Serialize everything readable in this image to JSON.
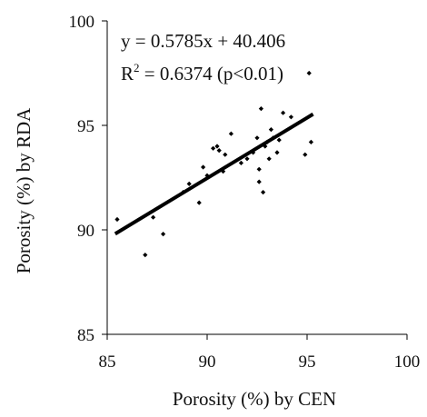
{
  "chart_data": {
    "type": "scatter",
    "xlabel": "Porosity (%) by CEN",
    "ylabel": "Porosity (%) by RDA",
    "xlim": [
      85,
      100
    ],
    "ylim": [
      85,
      100
    ],
    "x_ticks": [
      "85",
      "90",
      "95",
      "100"
    ],
    "y_ticks": [
      "85",
      "90",
      "95",
      "100"
    ],
    "grid": false,
    "legend": "none",
    "annotations": {
      "equation": "y = 0.5785x + 40.406",
      "r2_prefix": "R",
      "r2_sup": "2",
      "r2_rest": " = 0.6374 (p<0.01)"
    },
    "trendline": {
      "slope": 0.5785,
      "intercept": 40.406,
      "x_range": [
        85.4,
        95.3
      ]
    },
    "points": [
      {
        "x": 85.5,
        "y": 90.5
      },
      {
        "x": 86.9,
        "y": 88.8
      },
      {
        "x": 87.3,
        "y": 90.6
      },
      {
        "x": 87.8,
        "y": 89.8
      },
      {
        "x": 88.8,
        "y": 91.8
      },
      {
        "x": 89.1,
        "y": 92.2
      },
      {
        "x": 89.6,
        "y": 91.3
      },
      {
        "x": 89.8,
        "y": 93.0
      },
      {
        "x": 90.0,
        "y": 92.6
      },
      {
        "x": 90.3,
        "y": 93.9
      },
      {
        "x": 90.5,
        "y": 94.0
      },
      {
        "x": 90.6,
        "y": 93.8
      },
      {
        "x": 90.8,
        "y": 92.8
      },
      {
        "x": 90.9,
        "y": 93.6
      },
      {
        "x": 91.2,
        "y": 94.6
      },
      {
        "x": 91.7,
        "y": 93.2
      },
      {
        "x": 92.0,
        "y": 93.4
      },
      {
        "x": 92.3,
        "y": 93.7
      },
      {
        "x": 92.5,
        "y": 94.4
      },
      {
        "x": 92.6,
        "y": 92.9
      },
      {
        "x": 92.6,
        "y": 92.3
      },
      {
        "x": 92.8,
        "y": 91.8
      },
      {
        "x": 92.7,
        "y": 95.8
      },
      {
        "x": 92.9,
        "y": 94.0
      },
      {
        "x": 93.0,
        "y": 94.2
      },
      {
        "x": 93.1,
        "y": 93.4
      },
      {
        "x": 93.2,
        "y": 94.8
      },
      {
        "x": 93.3,
        "y": 94.4
      },
      {
        "x": 93.5,
        "y": 93.7
      },
      {
        "x": 93.6,
        "y": 94.3
      },
      {
        "x": 93.8,
        "y": 95.6
      },
      {
        "x": 94.2,
        "y": 95.4
      },
      {
        "x": 94.9,
        "y": 93.6
      },
      {
        "x": 95.2,
        "y": 94.2
      },
      {
        "x": 95.1,
        "y": 97.5
      }
    ]
  }
}
